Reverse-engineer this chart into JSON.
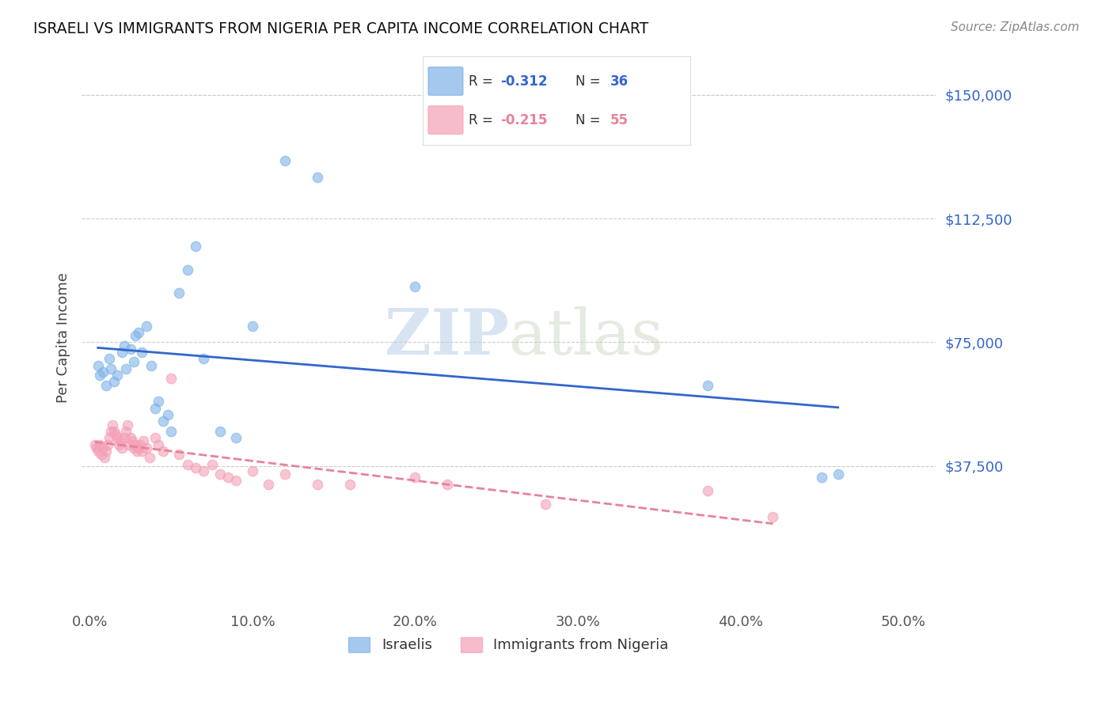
{
  "title": "ISRAELI VS IMMIGRANTS FROM NIGERIA PER CAPITA INCOME CORRELATION CHART",
  "source": "Source: ZipAtlas.com",
  "ylabel": "Per Capita Income",
  "xlabel_ticks": [
    "0.0%",
    "10.0%",
    "20.0%",
    "30.0%",
    "40.0%",
    "50.0%"
  ],
  "xlabel_vals": [
    0.0,
    0.1,
    0.2,
    0.3,
    0.4,
    0.5
  ],
  "yticks_vals": [
    0,
    37500,
    75000,
    112500,
    150000
  ],
  "yticks_labels": [
    "",
    "$37,500",
    "$75,000",
    "$112,500",
    "$150,000"
  ],
  "xlim": [
    -0.005,
    0.52
  ],
  "ylim": [
    -5000,
    158000
  ],
  "background_color": "#ffffff",
  "grid_color": "#cccccc",
  "watermark_zip": "ZIP",
  "watermark_atlas": "atlas",
  "legend_R1": "-0.312",
  "legend_N1": "36",
  "legend_R2": "-0.215",
  "legend_N2": "55",
  "israeli_color": "#7fb3e8",
  "nigerian_color": "#f4a0b5",
  "israeli_line_color": "#3366cc",
  "nigerian_line_color": "#e8829a",
  "title_color": "#111111",
  "axis_label_color": "#444444",
  "ytick_color": "#3366cc",
  "xtick_color": "#555555",
  "marker_size": 80,
  "marker_alpha": 0.6,
  "israeli_x": [
    0.005,
    0.006,
    0.008,
    0.01,
    0.012,
    0.013,
    0.015,
    0.017,
    0.02,
    0.021,
    0.022,
    0.025,
    0.027,
    0.028,
    0.03,
    0.032,
    0.035,
    0.038,
    0.04,
    0.042,
    0.045,
    0.048,
    0.05,
    0.055,
    0.06,
    0.065,
    0.07,
    0.08,
    0.09,
    0.1,
    0.12,
    0.14,
    0.2,
    0.38,
    0.45,
    0.46
  ],
  "israeli_y": [
    68000,
    65000,
    66000,
    62000,
    70000,
    67000,
    63000,
    65000,
    72000,
    74000,
    67000,
    73000,
    69000,
    77000,
    78000,
    72000,
    80000,
    68000,
    55000,
    57000,
    51000,
    53000,
    48000,
    90000,
    97000,
    104000,
    70000,
    48000,
    46000,
    80000,
    130000,
    125000,
    92000,
    62000,
    34000,
    35000
  ],
  "nigerian_x": [
    0.003,
    0.004,
    0.005,
    0.006,
    0.007,
    0.008,
    0.009,
    0.01,
    0.011,
    0.012,
    0.013,
    0.014,
    0.015,
    0.016,
    0.017,
    0.018,
    0.019,
    0.02,
    0.021,
    0.022,
    0.023,
    0.024,
    0.025,
    0.026,
    0.027,
    0.028,
    0.029,
    0.03,
    0.031,
    0.032,
    0.033,
    0.035,
    0.037,
    0.04,
    0.042,
    0.045,
    0.05,
    0.055,
    0.06,
    0.065,
    0.07,
    0.075,
    0.08,
    0.085,
    0.09,
    0.1,
    0.11,
    0.12,
    0.14,
    0.16,
    0.2,
    0.22,
    0.28,
    0.38,
    0.42
  ],
  "nigerian_y": [
    44000,
    43000,
    42000,
    44000,
    41000,
    43000,
    40000,
    42000,
    44000,
    46000,
    48000,
    50000,
    48000,
    47000,
    46000,
    44000,
    45000,
    43000,
    46000,
    48000,
    50000,
    44000,
    46000,
    45000,
    43000,
    44000,
    42000,
    43000,
    44000,
    42000,
    45000,
    43000,
    40000,
    46000,
    44000,
    42000,
    64000,
    41000,
    38000,
    37000,
    36000,
    38000,
    35000,
    34000,
    33000,
    36000,
    32000,
    35000,
    32000,
    32000,
    34000,
    32000,
    26000,
    30000,
    22000
  ]
}
